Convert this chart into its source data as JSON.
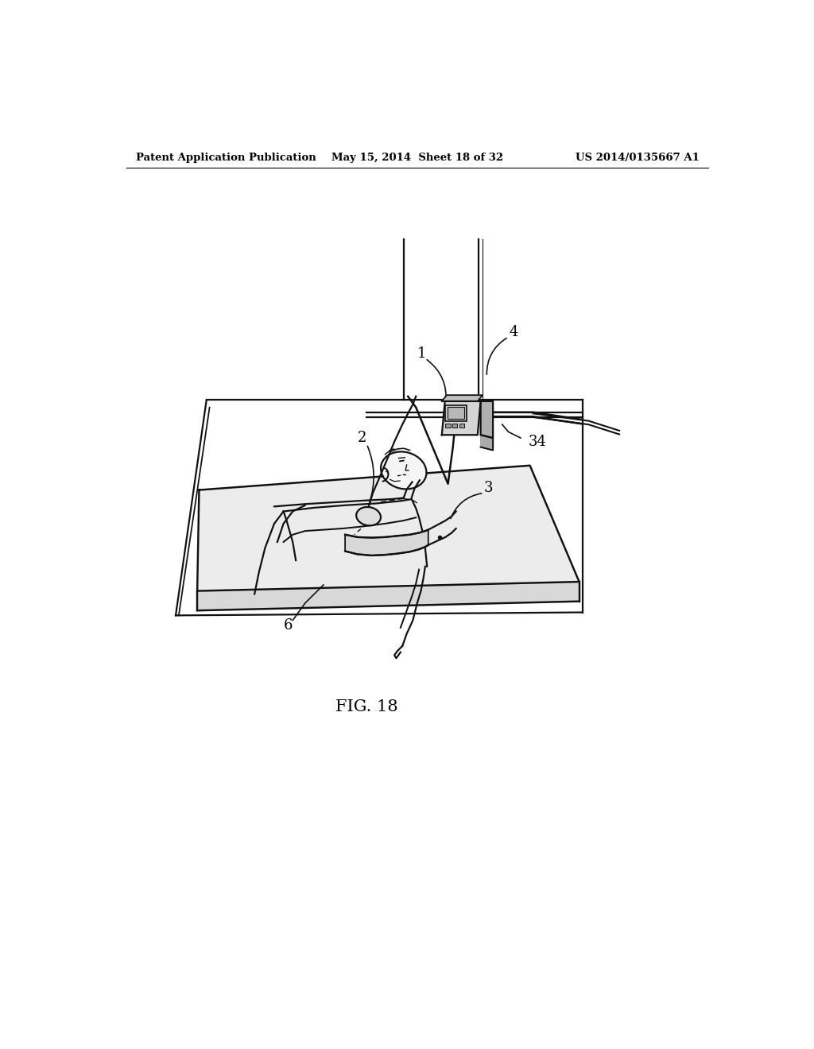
{
  "background_color": "#ffffff",
  "header_left": "Patent Application Publication",
  "header_center": "May 15, 2014  Sheet 18 of 32",
  "header_right": "US 2014/0135667 A1",
  "figure_label": "FIG. 18",
  "label_1": "1",
  "label_2": "2",
  "label_3": "3",
  "label_4": "4",
  "label_6": "6",
  "label_34": "34",
  "lc": "#111111",
  "lw": 1.6
}
